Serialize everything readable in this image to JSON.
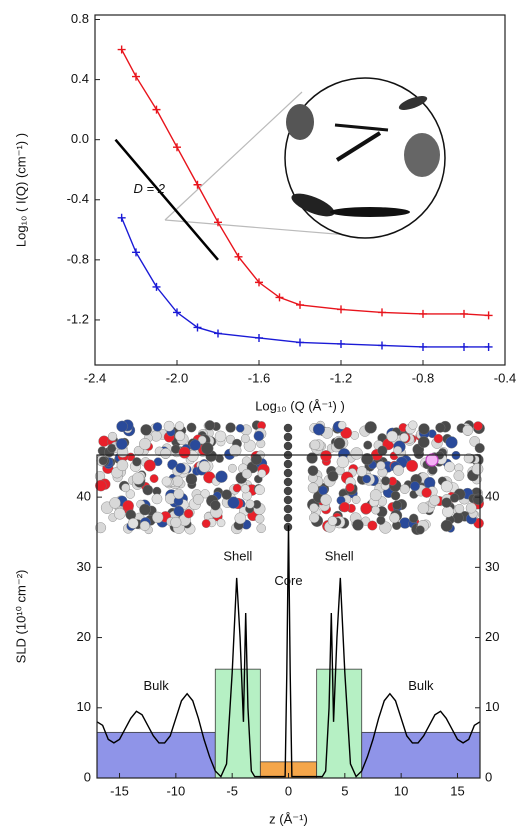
{
  "chart_data": [
    {
      "type": "line",
      "xlabel": "Log₁₀ (Q (Å⁻¹) )",
      "ylabel": "Log₁₀ ( I(Q) (cm⁻¹) )",
      "xlim": [
        -2.4,
        -0.4
      ],
      "xticks": [
        -2.4,
        {
          "value": -2.0,
          "label": "-2.0"
        },
        -1.6,
        -1.2,
        -0.8,
        -0.4
      ],
      "ylim": [
        -1.5,
        0.83
      ],
      "yticks": [
        0.8,
        0.4,
        {
          "value": 0,
          "label": "0.0"
        },
        -0.4,
        -0.8,
        -1.2
      ],
      "series": [
        {
          "color": "#e8141c",
          "x": [
            -2.27,
            -2.2,
            -2.1,
            -2.0,
            -1.9,
            -1.8,
            -1.7,
            -1.6,
            -1.5,
            -1.4,
            -1.2,
            -1.0,
            -0.8,
            -0.6,
            -0.48
          ],
          "values": [
            0.6,
            0.42,
            0.2,
            -0.05,
            -0.3,
            -0.55,
            -0.78,
            -0.95,
            -1.05,
            -1.1,
            -1.13,
            -1.15,
            -1.16,
            -1.16,
            -1.17
          ]
        },
        {
          "color": "#1a1ad6",
          "x": [
            -2.27,
            -2.2,
            -2.1,
            -2.0,
            -1.9,
            -1.8,
            -1.6,
            -1.4,
            -1.2,
            -1.0,
            -0.8,
            -0.6,
            -0.48
          ],
          "values": [
            -0.52,
            -0.75,
            -0.98,
            -1.15,
            -1.25,
            -1.29,
            -1.32,
            -1.35,
            -1.36,
            -1.37,
            -1.38,
            -1.38,
            -1.38
          ]
        }
      ],
      "reference_line": {
        "label": "D = 2",
        "color": "#000000",
        "x": [
          -2.3,
          -1.8
        ],
        "values": [
          0,
          -0.8
        ]
      }
    },
    {
      "type": "profile",
      "xlabel": "z (Å⁻¹)",
      "ylabel": "SLD (10¹⁰ cm⁻²)",
      "xlim": [
        -17,
        17
      ],
      "xticks": [
        -15,
        -10,
        -5,
        0,
        5,
        10,
        15
      ],
      "ylim": [
        0,
        46
      ],
      "yticks": [
        0,
        10,
        20,
        30,
        40
      ],
      "blocks": [
        {
          "label": "Bulk",
          "x": [
            -17,
            -6.5
          ],
          "value": 6.5,
          "color": "#8f94e8"
        },
        {
          "label": "Shell",
          "x": [
            -6.5,
            -2.5
          ],
          "value": 15.5,
          "color": "#b6f0c4"
        },
        {
          "label": "Core",
          "x": [
            -2.5,
            2.5
          ],
          "value": 2.3,
          "color": "#f5a64a"
        },
        {
          "label": "Shell",
          "x": [
            2.5,
            6.5
          ],
          "value": 15.5,
          "color": "#b6f0c4"
        },
        {
          "label": "Bulk",
          "x": [
            6.5,
            17
          ],
          "value": 6.5,
          "color": "#8f94e8"
        }
      ],
      "series": [
        {
          "color": "#000000",
          "x": [
            -17,
            -16.5,
            -16,
            -15.5,
            -15,
            -14.5,
            -14,
            -13.5,
            -13,
            -12.5,
            -12,
            -11.5,
            -11,
            -10.5,
            -10,
            -9.5,
            -9,
            -8.5,
            -8,
            -7.5,
            -7,
            -6.5,
            -6,
            -5.5,
            -5,
            -4.6,
            -4.3,
            -4,
            -3.8,
            -3.6,
            -3.3,
            -3,
            -0.3,
            -0.15,
            0,
            0.15,
            0.3,
            3,
            3.3,
            3.6,
            3.8,
            4,
            4.3,
            4.6,
            5,
            5.5,
            6,
            6.5,
            7,
            7.5,
            8,
            8.5,
            9,
            9.5,
            10,
            10.5,
            11,
            11.5,
            12,
            12.5,
            13,
            13.5,
            14,
            14.5,
            15,
            15.5,
            16,
            16.5,
            17
          ],
          "values": [
            8,
            7.5,
            5.5,
            5,
            5.5,
            7,
            8.5,
            9.5,
            9,
            7.5,
            6,
            5,
            5,
            6,
            8.5,
            11,
            12,
            11,
            8.5,
            5.5,
            3,
            1,
            0.2,
            2,
            15,
            28.5,
            20,
            8,
            23.5,
            10,
            1,
            0.2,
            0.2,
            15,
            36,
            15,
            0.2,
            0.2,
            1,
            10,
            23.5,
            8,
            20,
            28.5,
            15,
            2,
            0.2,
            1,
            3,
            5.5,
            8.5,
            11,
            12,
            11,
            8.5,
            6,
            5,
            5,
            6,
            7.5,
            9,
            9.5,
            8.5,
            7,
            5.5,
            5,
            5.5,
            7.5,
            8
          ]
        }
      ]
    }
  ]
}
